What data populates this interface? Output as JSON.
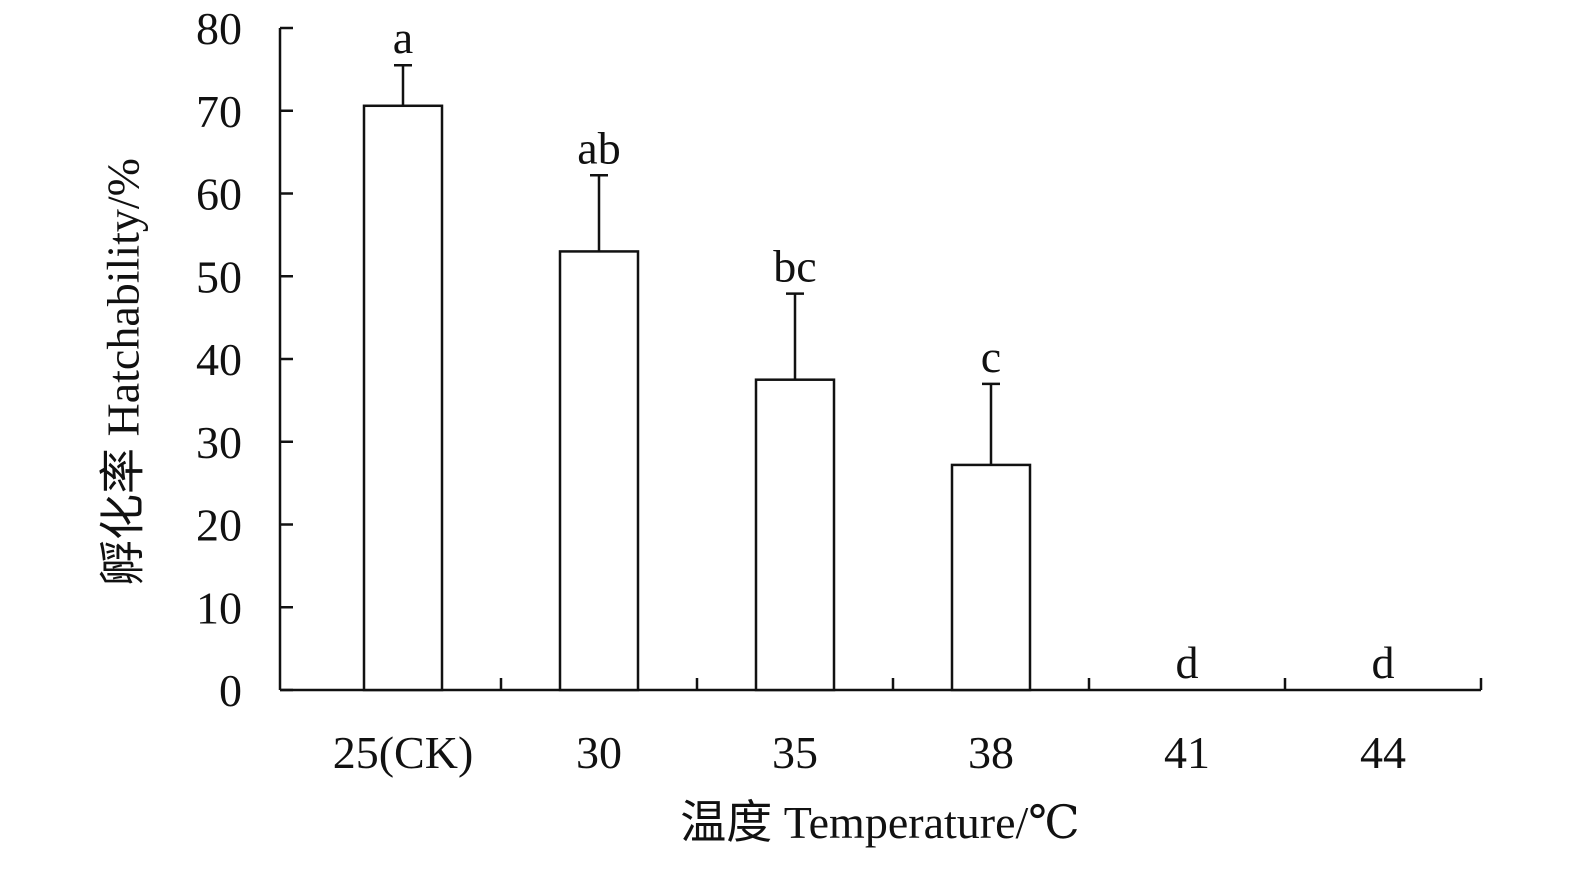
{
  "chart_data": {
    "type": "bar",
    "categories": [
      "25(CK)",
      "30",
      "35",
      "38",
      "41",
      "44"
    ],
    "values": [
      70.6,
      53.0,
      37.5,
      27.2,
      0,
      0
    ],
    "errors": [
      4.9,
      9.2,
      10.4,
      9.8,
      null,
      null
    ],
    "annotations": [
      "a",
      "ab",
      "bc",
      "c",
      "d",
      "d"
    ],
    "color": "#ffffff",
    "x_label": "温度 Temperature/℃",
    "y_label": "孵化率 Hatchability/%",
    "ylim": [
      0,
      80
    ],
    "yticks": [
      0,
      10,
      20,
      30,
      40,
      50,
      60,
      70,
      80
    ],
    "grid": false
  }
}
